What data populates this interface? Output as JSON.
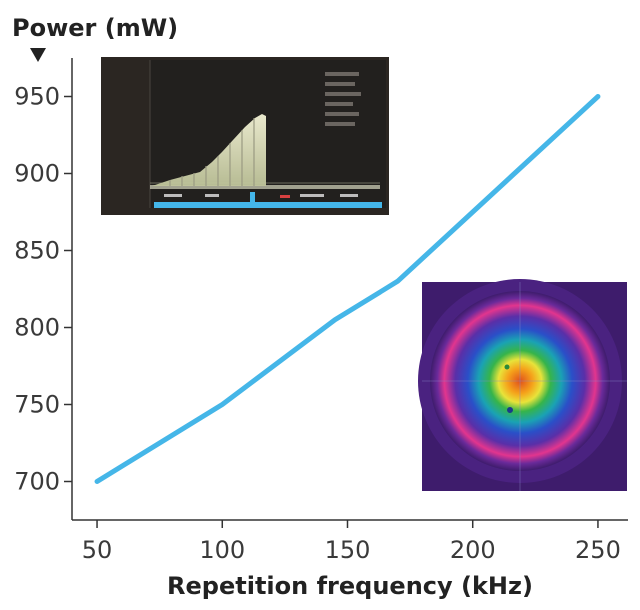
{
  "chart_data": {
    "type": "line",
    "title": "",
    "ylabel": "Power (mW)",
    "xlabel": "Repetition frequency (kHz)",
    "x": [
      50,
      100,
      145,
      170,
      250
    ],
    "series": [
      {
        "values": [
          700,
          750,
          805,
          830,
          950
        ]
      }
    ],
    "xlim": [
      40,
      262
    ],
    "ylim": [
      675,
      975
    ],
    "xticks": [
      "50",
      "100",
      "150",
      "200",
      "250"
    ],
    "yticks": [
      "700",
      "750",
      "800",
      "850",
      "900",
      "950"
    ],
    "grid": false,
    "legend": "none",
    "line_color": "#45b6e8",
    "insets": [
      "oscilloscope-pulse-trace",
      "beam-profile-heatmap"
    ]
  }
}
